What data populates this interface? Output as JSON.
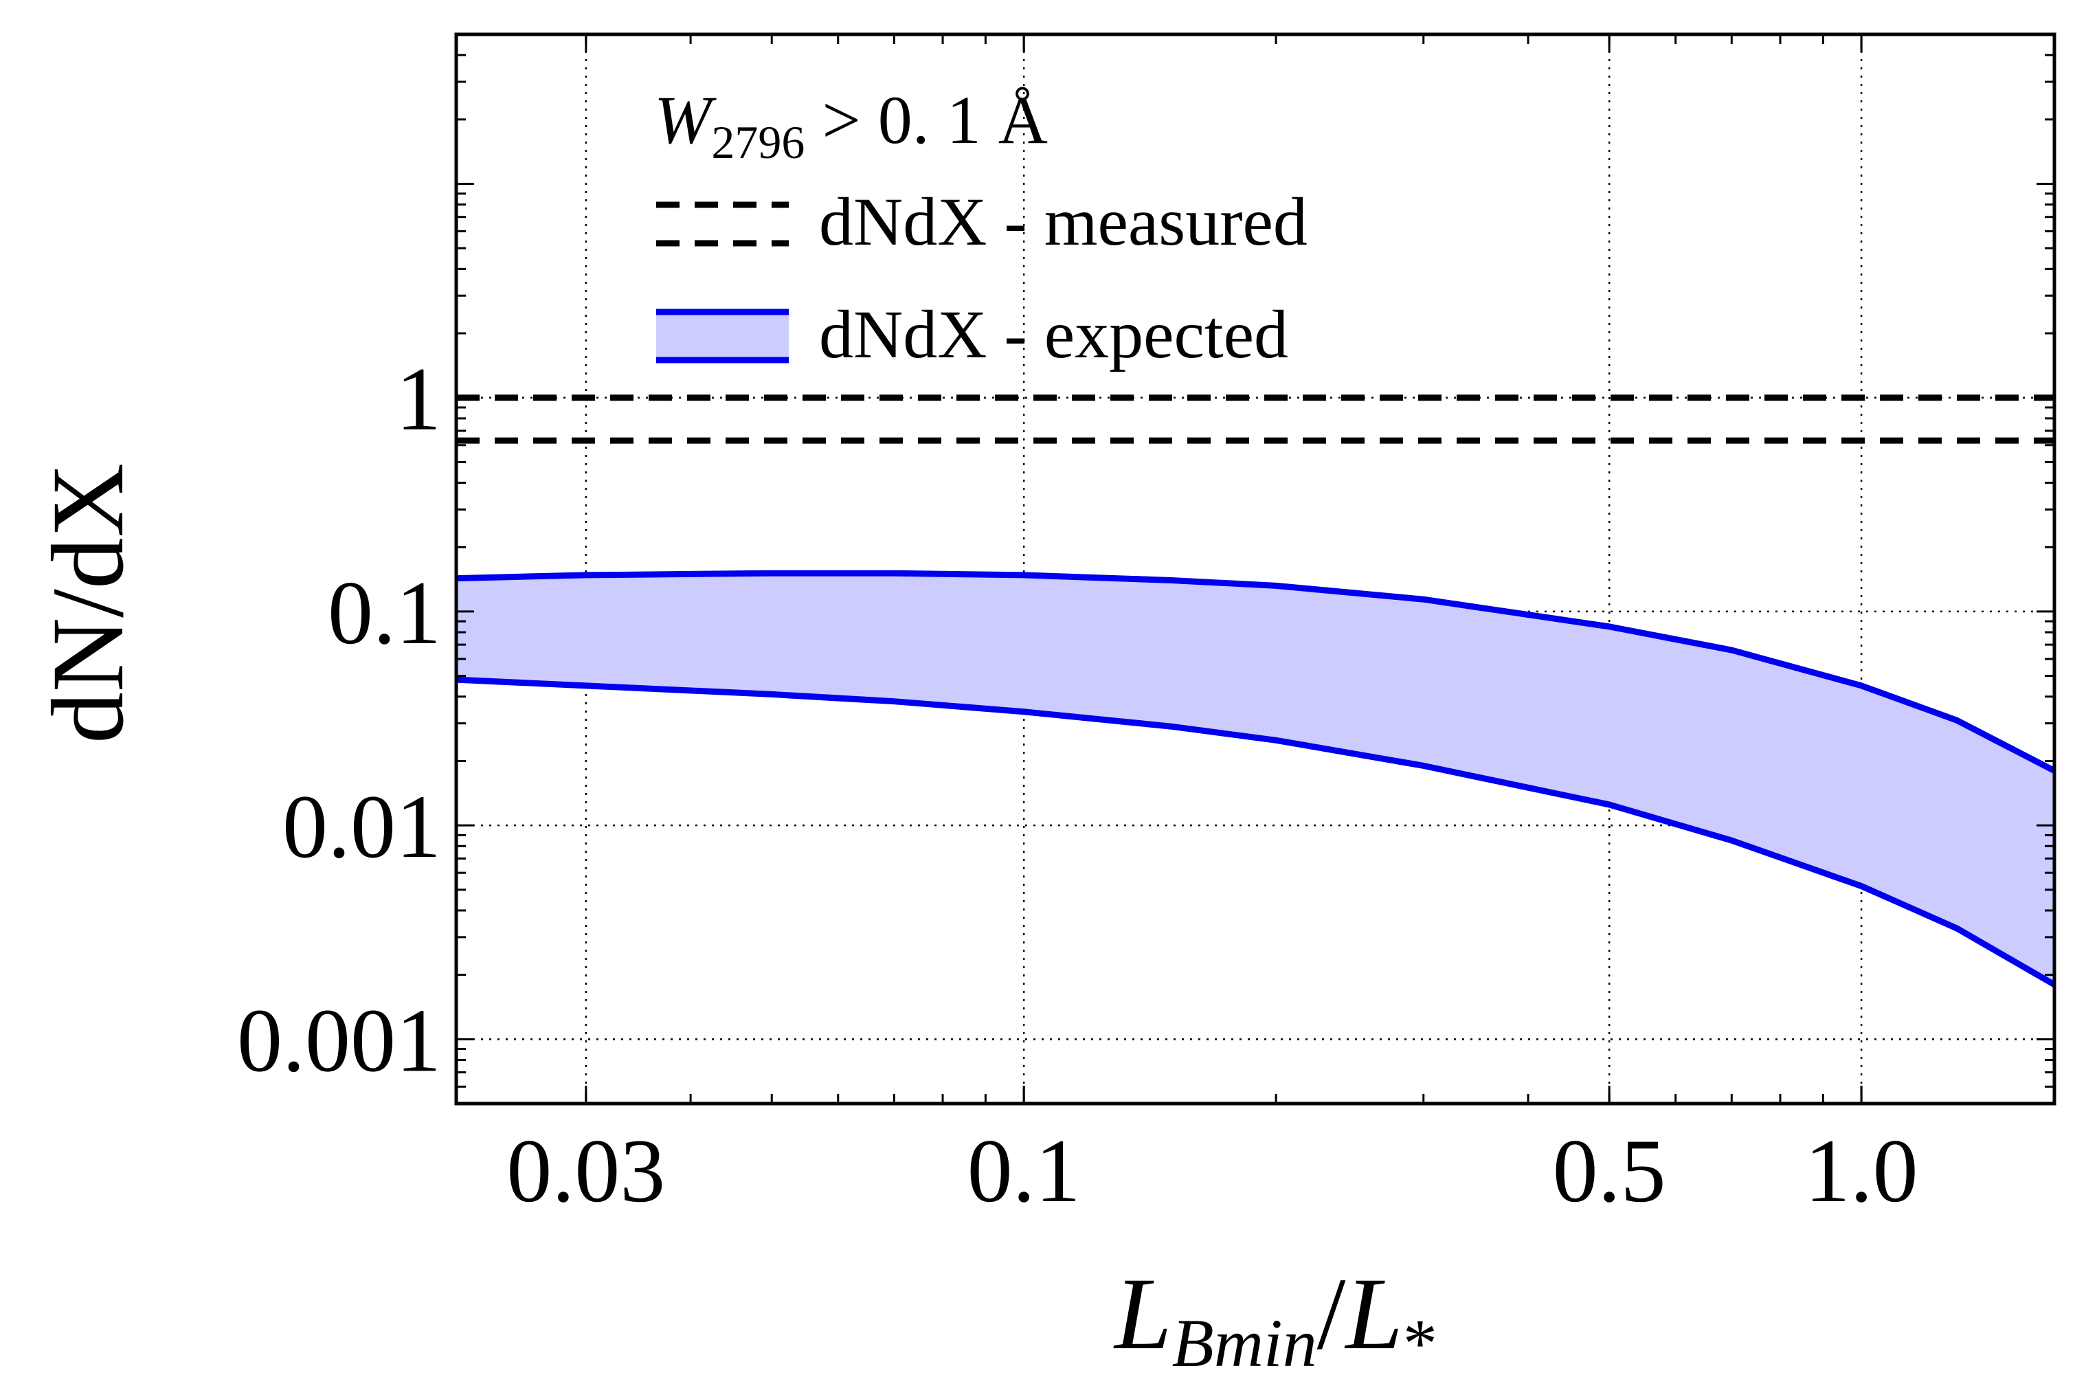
{
  "chart_data": {
    "type": "area",
    "title": "",
    "xlabel": "L_Bmin/L_*",
    "xlabel_parts": {
      "main": "L",
      "sub": "Bmin",
      "mid": "/L",
      "sub2": "*"
    },
    "ylabel": "dN/dX",
    "x_scale": "log",
    "y_scale": "log",
    "xlim": [
      0.021,
      1.7
    ],
    "ylim": [
      0.0005,
      50
    ],
    "grid": true,
    "x_ticks": [
      {
        "value": 0.03,
        "label": "0.03"
      },
      {
        "value": 0.1,
        "label": "0.1"
      },
      {
        "value": 0.5,
        "label": "0.5"
      },
      {
        "value": 1.0,
        "label": "1.0"
      }
    ],
    "y_ticks": [
      {
        "value": 0.001,
        "label": "0.001"
      },
      {
        "value": 0.01,
        "label": "0.01"
      },
      {
        "value": 0.1,
        "label": "0.1"
      },
      {
        "value": 1,
        "label": "1"
      }
    ],
    "legend": {
      "placement": "top-left",
      "title": {
        "main": "W",
        "sub": "2796",
        "rest": " > 0. 1 Å"
      },
      "entries": [
        {
          "label": "dNdX - measured",
          "style": "dashed",
          "color": "#000000"
        },
        {
          "label": "dNdX - expected",
          "style": "band",
          "color": "#0000ee",
          "fill": "#ccccff"
        }
      ]
    },
    "series": [
      {
        "name": "dNdX - measured",
        "kind": "dashed-lines",
        "color": "#000000",
        "levels": [
          1.0,
          0.63
        ]
      },
      {
        "name": "dNdX - expected",
        "kind": "band",
        "color": "#0000ee",
        "fill": "#ccccff",
        "x": [
          0.021,
          0.03,
          0.05,
          0.07,
          0.1,
          0.15,
          0.2,
          0.3,
          0.5,
          0.7,
          1.0,
          1.3,
          1.7
        ],
        "upper": [
          0.143,
          0.148,
          0.151,
          0.151,
          0.148,
          0.14,
          0.132,
          0.114,
          0.085,
          0.066,
          0.045,
          0.031,
          0.018
        ],
        "lower": [
          0.048,
          0.045,
          0.041,
          0.038,
          0.034,
          0.029,
          0.025,
          0.019,
          0.0125,
          0.0085,
          0.0052,
          0.0033,
          0.0018
        ]
      }
    ]
  },
  "colors": {
    "axis": "#000000",
    "grid": "#000000",
    "band_line": "#0000ee",
    "band_fill": "#ccccff"
  }
}
